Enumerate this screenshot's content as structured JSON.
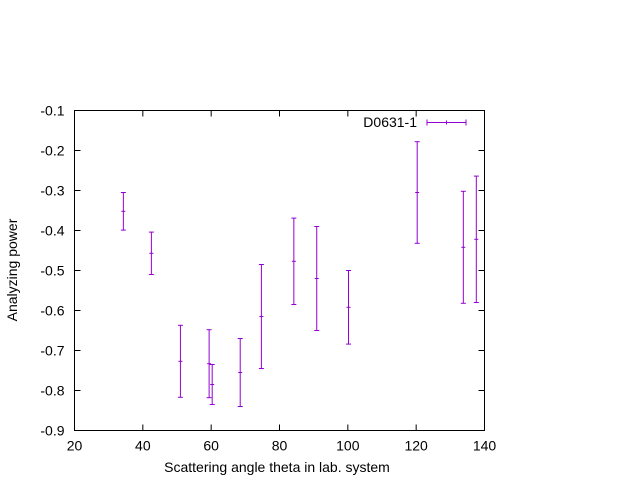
{
  "chart_data": {
    "type": "scatter",
    "xlabel": "Scattering angle theta in lab. system",
    "ylabel": "Analyzing power",
    "xlim": [
      20,
      140
    ],
    "ylim": [
      -0.9,
      -0.1
    ],
    "x_ticks": [
      20,
      40,
      60,
      80,
      100,
      120,
      140
    ],
    "y_ticks": [
      -0.9,
      -0.8,
      -0.7,
      -0.6,
      -0.5,
      -0.4,
      -0.3,
      -0.2,
      -0.1
    ],
    "x_tick_labels": [
      "20",
      "40",
      "60",
      "80",
      "100",
      "120",
      "140"
    ],
    "y_tick_labels": [
      "-0.9",
      "-0.8",
      "-0.7",
      "-0.6",
      "-0.5",
      "-0.4",
      "-0.3",
      "-0.2",
      "-0.1"
    ],
    "grid": false,
    "legend_position": "top-right",
    "series": [
      {
        "name": "D0631-1",
        "color": "#9400d3",
        "points": [
          {
            "x": 34.3,
            "y": -0.352,
            "err": 0.047
          },
          {
            "x": 42.5,
            "y": -0.457,
            "err": 0.053
          },
          {
            "x": 51.0,
            "y": -0.727,
            "err": 0.09
          },
          {
            "x": 59.4,
            "y": -0.733,
            "err": 0.085
          },
          {
            "x": 60.3,
            "y": -0.785,
            "err": 0.05
          },
          {
            "x": 68.5,
            "y": -0.755,
            "err": 0.085
          },
          {
            "x": 74.7,
            "y": -0.615,
            "err": 0.13
          },
          {
            "x": 84.2,
            "y": -0.477,
            "err": 0.108
          },
          {
            "x": 90.9,
            "y": -0.52,
            "err": 0.13
          },
          {
            "x": 100.2,
            "y": -0.592,
            "err": 0.092
          },
          {
            "x": 120.3,
            "y": -0.305,
            "err": 0.127
          },
          {
            "x": 133.8,
            "y": -0.442,
            "err": 0.14
          },
          {
            "x": 137.6,
            "y": -0.422,
            "err": 0.158
          }
        ]
      }
    ]
  }
}
